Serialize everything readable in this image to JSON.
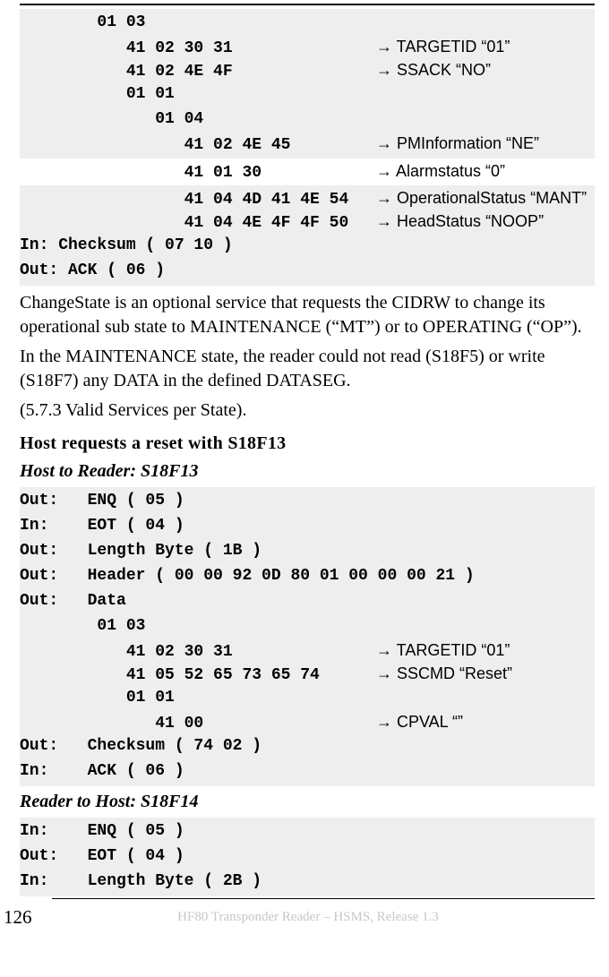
{
  "topblock": {
    "l1_hex": "        01 03",
    "l2_hex": "           41 02 30 31",
    "l2_anno": "→ TARGETID “01”",
    "l3_hex": "           41 02 4E 4F",
    "l3_anno": "→ SSACK “NO”",
    "l4_hex": "           01 01",
    "l5_hex": "              01 04",
    "l6_hex": "                 41 02 4E 45",
    "l6_anno": "→ PMInformation “NE”",
    "l7_hex": "                 41 01 30",
    "l7_anno": "→ Alarmstatus “0”",
    "l8_hex": "                 41 04 4D 41 4E 54",
    "l8_anno": "→ OperationalStatus “MANT”",
    "l9_hex": "                 41 04 4E 4F 4F 50",
    "l9_anno": "→ HeadStatus “NOOP”",
    "l10": "In: Checksum ( 07 10 )",
    "l11": "Out: ACK ( 06 )"
  },
  "para1": "ChangeState is an optional service that requests the CIDRW to change its operational sub state to MAINTENANCE (“MT”) or to OPERATING (“OP”).",
  "para2": "In the MAINTENANCE state, the reader could not read (S18F5) or write (S18F7) any DATA in the defined DATASEG.",
  "para3": "(5.7.3 Valid Services per State).",
  "h2a": "Host requests a reset with S18F13",
  "h3a": "Host to Reader: S18F13",
  "blockA": {
    "l1": "Out:   ENQ ( 05 )",
    "l2": "In:    EOT ( 04 )",
    "l3": "Out:   Length Byte ( 1B )",
    "l4": "Out:   Header ( 00 00 92 0D 80 01 00 00 00 21 )",
    "l5": "Out:   Data",
    "l6": "        01 03",
    "l7h": "           41 02 30 31",
    "l7a": "→ TARGETID “01”",
    "l8h": "           41 05 52 65 73 65 74",
    "l8a": "→ SSCMD “Reset”",
    "l9": "           01 01",
    "l10h": "              41 00",
    "l10a": "→ CPVAL “”",
    "l11": "Out:   Checksum ( 74 02 )",
    "l12": "In:    ACK ( 06 )"
  },
  "h3b": "Reader to Host: S18F14",
  "blockB": {
    "l1": "In:    ENQ ( 05 )",
    "l2": "Out:   EOT ( 04 )",
    "l3": "In:    Length Byte ( 2B )"
  },
  "footer": {
    "page": "126",
    "text": "HF80 Transponder Reader – HSMS, Release 1.3"
  }
}
